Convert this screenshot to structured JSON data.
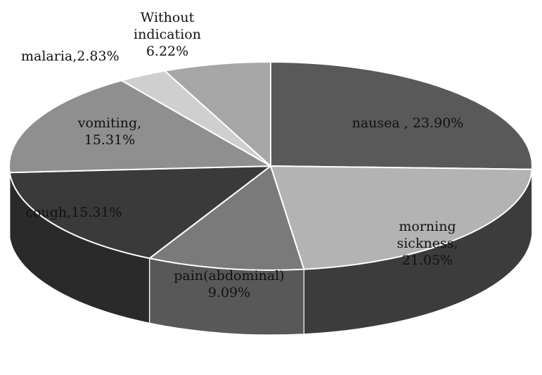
{
  "chart_data": {
    "type": "pie",
    "three_d": true,
    "start_angle": "12 o'clock",
    "direction": "clockwise",
    "slices": [
      {
        "label_lines": [
          "nausea , 23.90%"
        ],
        "value": 23.9,
        "color": "#595959",
        "side_color": "#3b3b3b"
      },
      {
        "label_lines": [
          "morning",
          "sickness,",
          "21.05%"
        ],
        "value": 21.05,
        "color": "#b3b3b3",
        "side_color": "#3c3c3c"
      },
      {
        "label_lines": [
          "pain(abdominal)",
          "9.09%"
        ],
        "value": 9.09,
        "color": "#7a7a7a",
        "side_color": "#585858"
      },
      {
        "label_lines": [
          "cough,15.31%"
        ],
        "value": 15.31,
        "color": "#3a3a3a",
        "side_color": "#2a2a2a"
      },
      {
        "label_lines": [
          "vomiting,",
          "15.31%"
        ],
        "value": 15.31,
        "color": "#8f8f8f",
        "side_color": "#6d6d6d"
      },
      {
        "label_lines": [
          "malaria,2.83%"
        ],
        "value": 2.83,
        "color": "#cfcfcf",
        "side_color": "#9a9a9a"
      },
      {
        "label_lines": [
          "Without",
          "indication",
          "6.22%"
        ],
        "value": 6.22,
        "color": "#a6a6a6",
        "side_color": "#7e7e7e"
      }
    ]
  }
}
